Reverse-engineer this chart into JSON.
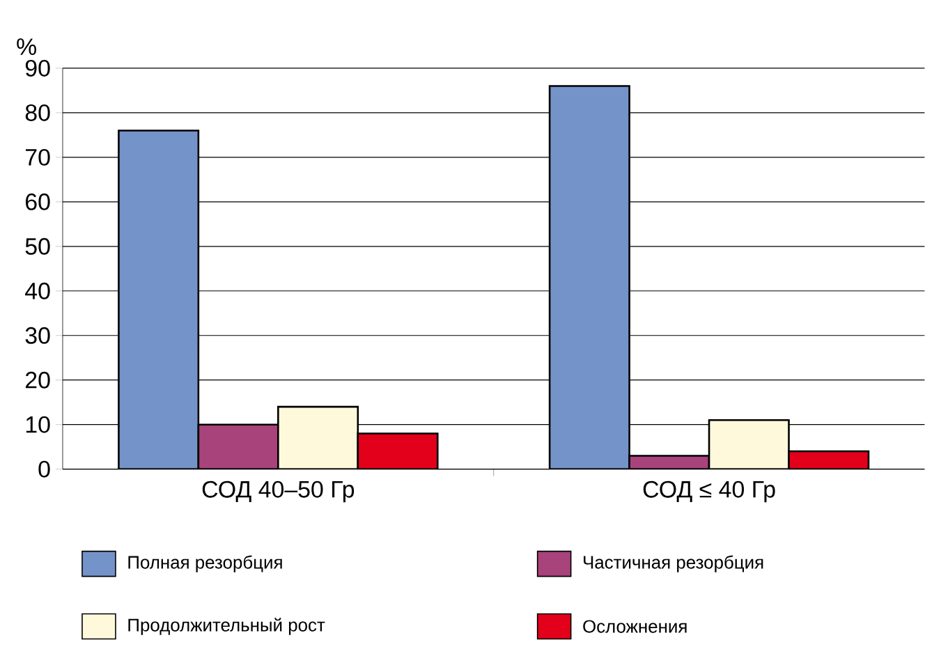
{
  "chart_data": {
    "type": "bar",
    "ylabel": "%",
    "categories": [
      "СОД 40–50 Гр",
      "СОД ≤ 40 Гр"
    ],
    "series": [
      {
        "name": "Полная резорбция",
        "color": "#7493c8",
        "values": [
          76,
          86
        ]
      },
      {
        "name": "Частичная резорбция",
        "color": "#a8437c",
        "values": [
          10,
          3
        ]
      },
      {
        "name": "Продолжительный рост",
        "color": "#fff9dc",
        "values": [
          14,
          11
        ]
      },
      {
        "name": "Осложнения",
        "color": "#e2001a",
        "values": [
          8,
          4
        ]
      }
    ],
    "ylim": [
      0,
      90
    ],
    "yticks": [
      0,
      10,
      20,
      30,
      40,
      50,
      60,
      70,
      80,
      90
    ],
    "grid": "y",
    "legend": "bottom"
  }
}
